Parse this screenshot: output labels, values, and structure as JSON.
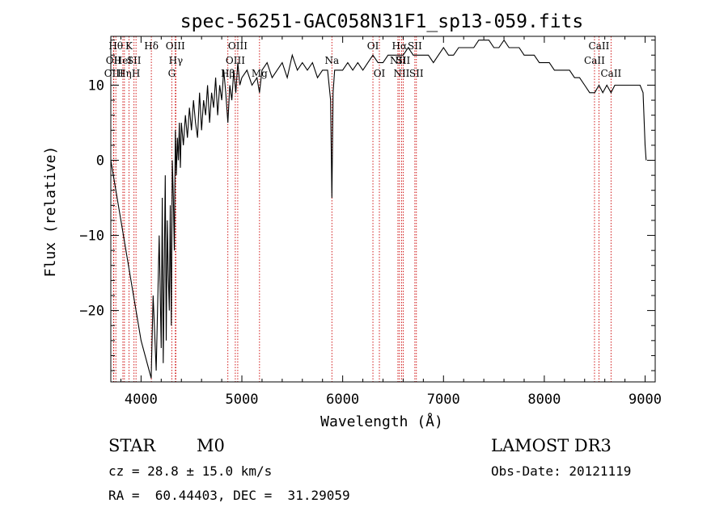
{
  "chart_data": {
    "type": "line",
    "title": "spec-56251-GAC058N31F1_sp13-059.fits",
    "xlabel": "Wavelength (Å)",
    "ylabel": "Flux (relative)",
    "xlim": [
      3700,
      9100
    ],
    "ylim": [
      -29.5,
      16.5
    ],
    "xticks": [
      4000,
      5000,
      6000,
      7000,
      8000,
      9000
    ],
    "yticks": [
      -20,
      -10,
      0,
      10
    ],
    "grid": false,
    "line_colors": {
      "spectrum": "#000000",
      "lines": "#cc0000"
    },
    "spectral_lines": [
      {
        "label": "Hθ",
        "wavelength": 3750,
        "row": 1
      },
      {
        "label": "OII",
        "wavelength": 3727,
        "row": 2
      },
      {
        "label": "OIII",
        "wavelength": 3730,
        "row": 3
      },
      {
        "label": "HeI",
        "wavelength": 3820,
        "row": 2
      },
      {
        "label": "Hη",
        "wavelength": 3835,
        "row": 3
      },
      {
        "label": "K",
        "wavelength": 3880,
        "row": 1
      },
      {
        "label": "SII",
        "wavelength": 3930,
        "row": 2
      },
      {
        "label": "H",
        "wavelength": 3950,
        "row": 3
      },
      {
        "label": "Hδ",
        "wavelength": 4102,
        "row": 1
      },
      {
        "label": "OIII",
        "wavelength": 4340,
        "row": 1
      },
      {
        "label": "Hγ",
        "wavelength": 4345,
        "row": 2
      },
      {
        "label": "G",
        "wavelength": 4305,
        "row": 3
      },
      {
        "label": "OIII",
        "wavelength": 4959,
        "row": 1
      },
      {
        "label": "OIII",
        "wavelength": 4935,
        "row": 2
      },
      {
        "label": "Hβ",
        "wavelength": 4861,
        "row": 3
      },
      {
        "label": "Mg",
        "wavelength": 5175,
        "row": 3
      },
      {
        "label": "Na",
        "wavelength": 5893,
        "row": 2
      },
      {
        "label": "OI",
        "wavelength": 6300,
        "row": 1
      },
      {
        "label": "OI",
        "wavelength": 6364,
        "row": 3
      },
      {
        "label": "Hα",
        "wavelength": 6563,
        "row": 1
      },
      {
        "label": "NII",
        "wavelength": 6548,
        "row": 2
      },
      {
        "label": "SII",
        "wavelength": 6600,
        "row": 2
      },
      {
        "label": "NII",
        "wavelength": 6584,
        "row": 3
      },
      {
        "label": "SII",
        "wavelength": 6716,
        "row": 1
      },
      {
        "label": "SII",
        "wavelength": 6731,
        "row": 3
      },
      {
        "label": "CaII",
        "wavelength": 8542,
        "row": 1
      },
      {
        "label": "CaII",
        "wavelength": 8498,
        "row": 2
      },
      {
        "label": "CaII",
        "wavelength": 8662,
        "row": 3
      }
    ],
    "series": [
      {
        "name": "spectrum",
        "x": [
          3700,
          3850,
          4000,
          4100,
          4120,
          4150,
          4180,
          4200,
          4210,
          4220,
          4240,
          4250,
          4260,
          4270,
          4280,
          4290,
          4300,
          4310,
          4320,
          4330,
          4340,
          4350,
          4360,
          4370,
          4380,
          4390,
          4400,
          4420,
          4440,
          4460,
          4480,
          4500,
          4520,
          4540,
          4560,
          4580,
          4600,
          4620,
          4640,
          4660,
          4680,
          4700,
          4720,
          4740,
          4760,
          4780,
          4800,
          4820,
          4840,
          4861,
          4880,
          4900,
          4920,
          4940,
          4960,
          4980,
          5000,
          5050,
          5100,
          5150,
          5175,
          5200,
          5250,
          5300,
          5350,
          5400,
          5450,
          5500,
          5550,
          5600,
          5650,
          5700,
          5750,
          5800,
          5850,
          5880,
          5893,
          5905,
          5920,
          5950,
          6000,
          6050,
          6100,
          6150,
          6200,
          6250,
          6300,
          6350,
          6400,
          6450,
          6500,
          6550,
          6563,
          6600,
          6650,
          6700,
          6750,
          6800,
          6850,
          6900,
          6950,
          7000,
          7050,
          7100,
          7150,
          7200,
          7250,
          7300,
          7350,
          7400,
          7450,
          7500,
          7550,
          7600,
          7650,
          7700,
          7750,
          7800,
          7850,
          7900,
          7950,
          8000,
          8050,
          8100,
          8150,
          8200,
          8250,
          8300,
          8350,
          8400,
          8450,
          8500,
          8542,
          8580,
          8620,
          8662,
          8700,
          8750,
          8800,
          8850,
          8900,
          8950,
          8980,
          9000,
          9010
        ],
        "values": [
          0,
          -12,
          -24,
          -29,
          -18,
          -28,
          -10,
          -25,
          -5,
          -27,
          -2,
          -24,
          -8,
          -15,
          -20,
          -6,
          -22,
          0,
          -5,
          -12,
          4,
          -2,
          3,
          0,
          5,
          -1,
          5,
          2,
          6,
          3,
          7,
          4,
          8,
          5,
          3,
          9,
          4,
          8,
          6,
          10,
          5,
          9,
          7,
          11,
          6,
          10,
          8,
          12,
          9,
          5,
          10,
          8,
          12,
          9,
          13,
          10,
          11,
          12,
          10,
          11,
          9,
          12,
          13,
          11,
          12,
          13,
          11,
          14,
          12,
          13,
          12,
          13,
          11,
          12,
          12,
          8,
          -5,
          9,
          12,
          12,
          12,
          13,
          12,
          13,
          12,
          13,
          14,
          13,
          13,
          14,
          14,
          14,
          14,
          14,
          15,
          14,
          14,
          14,
          14,
          13,
          14,
          15,
          14,
          14,
          15,
          15,
          15,
          15,
          16,
          16,
          16,
          15,
          15,
          16,
          15,
          15,
          15,
          14,
          14,
          14,
          13,
          13,
          13,
          12,
          12,
          12,
          12,
          11,
          11,
          10,
          9,
          9,
          10,
          9,
          10,
          9,
          10,
          10,
          10,
          10,
          10,
          10,
          9,
          2,
          0
        ]
      }
    ]
  },
  "info": {
    "class_label": "STAR",
    "subclass": "M0",
    "survey": "LAMOST DR3",
    "cz": "cz = 28.8 ± 15.0 km/s",
    "obs_date": "Obs-Date: 20121119",
    "coords": "RA =  60.44403, DEC =  31.29059"
  }
}
